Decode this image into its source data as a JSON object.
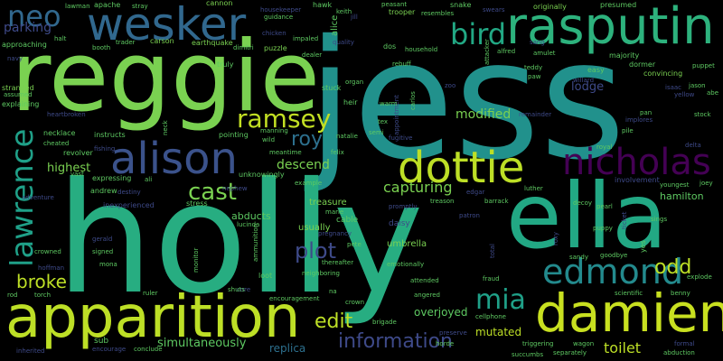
{
  "words": {
    "jess": "jess",
    "holly": "holly",
    "reggie": "reggie",
    "apparition": "apparition",
    "ella": "ella",
    "damien": "damien",
    "rasputin": "rasputin",
    "wesker": "wesker",
    "alison": "alison",
    "dottie": "dottie",
    "nicholas": "nicholas",
    "edmond": "edmond",
    "lawrence": "lawrence",
    "bird": "bird",
    "neo": "neo",
    "ramsey": "ramsey",
    "information": "information",
    "mia": "mia",
    "cast": "cast",
    "plot": "plot",
    "roy": "roy",
    "odd": "odd",
    "edit": "edit",
    "broke": "broke",
    "capturing": "capturing",
    "modified": "modified",
    "toilet": "toilet",
    "parking": "parking",
    "descend": "descend",
    "simultaneously": "simultaneously",
    "highest": "highest",
    "lodge": "lodge",
    "mutated": "mutated",
    "replica": "replica",
    "overjoyed": "overjoyed",
    "abducts": "abducts",
    "hamilton": "hamilton",
    "usually": "usually",
    "umbrella": "umbrella",
    "treasure": "treasure",
    "cable": "cable",
    "daisy": "daisy",
    "alice": "alice",
    "hawk": "hawk",
    "keith": "keith",
    "jill": "jill",
    "housekeeper": "housekeeper",
    "guidance": "guidance",
    "snake": "snake",
    "swears": "swears",
    "trooper": "trooper",
    "resembles": "resembles",
    "peasant": "peasant",
    "originally": "originally",
    "presumed": "presumed",
    "willard": "willard",
    "lawman": "lawman",
    "apache": "apache",
    "stray": "stray",
    "cannon": "cannon",
    "approaching": "approaching",
    "halt": "halt",
    "booth": "booth",
    "trader": "trader",
    "carson": "carson",
    "earthquake": "earthquake",
    "dimitri": "dimitri",
    "puzzle": "puzzle",
    "chicken": "chicken",
    "impaled": "impaled",
    "quality": "quality",
    "dealer": "dealer",
    "heir": "heir",
    "truly": "truly",
    "stranded": "stranded",
    "assumed": "assumed",
    "explaining": "explaining",
    "heartbroken": "heartbroken",
    "navy": "navy",
    "organ": "organ",
    "stuck": "stuck",
    "dos": "dos",
    "household": "household",
    "rebuff": "rebuff",
    "attacker": "attacker",
    "appointment": "appointment",
    "carlos": "carlos",
    "warm": "warm",
    "zoo": "zoo",
    "dormer": "dormer",
    "convincing": "convincing",
    "majority": "majority",
    "sang": "sang",
    "amulet": "amulet",
    "alfred": "alfred",
    "easy": "easy",
    "teddy": "teddy",
    "paw": "paw",
    "puppet": "puppet",
    "isaac": "isaac",
    "pan": "pan",
    "jason": "jason",
    "yellow": "yellow",
    "abe": "abe",
    "stock": "stock",
    "remainder": "remainder",
    "implores": "implores",
    "pile": "pile",
    "royal": "royal",
    "delta": "delta",
    "involvement": "involvement",
    "youngest": "youngest",
    "joey": "joey",
    "necklace": "necklace",
    "cheated": "cheated",
    "instructs": "instructs",
    "fishing": "fishing",
    "neck": "neck",
    "pointing": "pointing",
    "manning": "manning",
    "wild": "wild",
    "natalie": "natalie",
    "semi": "semi",
    "meantime": "meantime",
    "felix": "felix",
    "fugitive": "fugitive",
    "tex": "tex",
    "luther": "luther",
    "revolver": "revolver",
    "expressing": "expressing",
    "vast": "vast",
    "andrew": "andrew",
    "destiny": "destiny",
    "ali": "ali",
    "unknowingly": "unknowingly",
    "nephew": "nephew",
    "example": "example",
    "adventure": "adventure",
    "inexperienced": "inexperienced",
    "stress": "stress",
    "marie": "marie",
    "treason": "treason",
    "edgar": "edgar",
    "barrack": "barrack",
    "promptly": "promptly",
    "decoy": "decoy",
    "pearl": "pearl",
    "ticket": "ticket",
    "patron": "patron",
    "sings": "sings",
    "puppy": "puppy",
    "yes": "yes",
    "gerald": "gerald",
    "lucinda": "lucinda",
    "pregnancy": "pregnancy",
    "crowned": "crowned",
    "ammunition": "ammunition",
    "pete": "pete",
    "hoffman": "hoffman",
    "signed": "signed",
    "mona": "mona",
    "monitor": "monitor",
    "loot": "loot",
    "neighboring": "neighboring",
    "thereafter": "thereafter",
    "emotionally": "emotionally",
    "total": "total",
    "fraud": "fraud",
    "sandy": "sandy",
    "goodbye": "goodbye",
    "roxy": "roxy",
    "explode": "explode",
    "scientific": "scientific",
    "benny": "benny",
    "rod": "rod",
    "torch": "torch",
    "core": "core",
    "shuts": "shuts",
    "ruler": "ruler",
    "encouragement": "encouragement",
    "na": "na",
    "attended": "attended",
    "angered": "angered",
    "crown": "crown",
    "brigade": "brigade",
    "cellphone": "cellphone",
    "preserve": "preserve",
    "horde": "horde",
    "sub": "sub",
    "encourage": "encourage",
    "conclude": "conclude",
    "inherited": "inherited",
    "triggering": "triggering",
    "succumbs": "succumbs",
    "separately": "separately",
    "wagon": "wagon",
    "formal": "formal",
    "abduction": "abduction"
  }
}
